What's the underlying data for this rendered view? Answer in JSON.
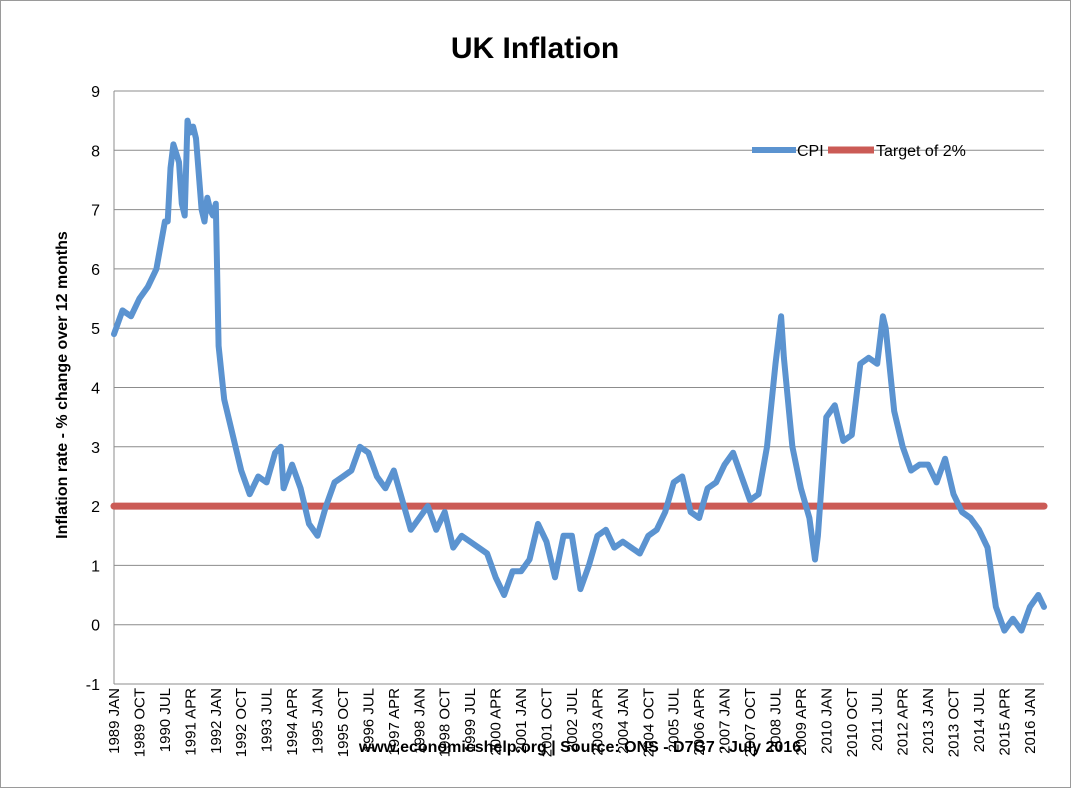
{
  "chart_data": {
    "type": "line",
    "title": "UK Inflation",
    "xlabel": "",
    "ylabel": "Inflation rate  - % change over 12 months",
    "footer": "www.economicshelp.org | Source: ONS - D7G7  - July 2016",
    "ylim": [
      -1,
      9
    ],
    "yticks": [
      "-1",
      "0",
      "1",
      "2",
      "3",
      "4",
      "5",
      "6",
      "7",
      "8",
      "9"
    ],
    "xlim": [
      "1989-01",
      "2016-06"
    ],
    "xtick_labels": [
      "1989 JAN",
      "1989 OCT",
      "1990 JUL",
      "1991 APR",
      "1992 JAN",
      "1992 OCT",
      "1993 JUL",
      "1994 APR",
      "1995 JAN",
      "1995 OCT",
      "1996 JUL",
      "1997 APR",
      "1998 JAN",
      "1998 OCT",
      "1999 JUL",
      "2000 APR",
      "2001 JAN",
      "2001 OCT",
      "2002 JUL",
      "2003 APR",
      "2004 JAN",
      "2004 OCT",
      "2005 JUL",
      "2006 APR",
      "2007 JAN",
      "2007 OCT",
      "2008 JUL",
      "2009 APR",
      "2010 JAN",
      "2010 OCT",
      "2011 JUL",
      "2012 APR",
      "2013 JAN",
      "2013 OCT",
      "2014 JUL",
      "2015 APR",
      "2016 JAN"
    ],
    "grid": "horizontal",
    "legend_position": "top-right",
    "series": [
      {
        "name": "CPI",
        "color": "#5b93d0",
        "points": [
          [
            "1989-01",
            4.9
          ],
          [
            "1989-04",
            5.3
          ],
          [
            "1989-07",
            5.2
          ],
          [
            "1989-10",
            5.5
          ],
          [
            "1990-01",
            5.7
          ],
          [
            "1990-04",
            6.0
          ],
          [
            "1990-07",
            6.8
          ],
          [
            "1990-08",
            6.8
          ],
          [
            "1990-09",
            7.7
          ],
          [
            "1990-10",
            8.1
          ],
          [
            "1990-12",
            7.8
          ],
          [
            "1991-01",
            7.1
          ],
          [
            "1991-02",
            6.9
          ],
          [
            "1991-03",
            8.5
          ],
          [
            "1991-04",
            8.3
          ],
          [
            "1991-05",
            8.4
          ],
          [
            "1991-06",
            8.2
          ],
          [
            "1991-08",
            7.0
          ],
          [
            "1991-09",
            6.8
          ],
          [
            "1991-10",
            7.2
          ],
          [
            "1991-11",
            7.0
          ],
          [
            "1991-12",
            6.9
          ],
          [
            "1992-01",
            7.1
          ],
          [
            "1992-02",
            4.7
          ],
          [
            "1992-04",
            3.8
          ],
          [
            "1992-07",
            3.2
          ],
          [
            "1992-10",
            2.6
          ],
          [
            "1993-01",
            2.2
          ],
          [
            "1993-04",
            2.5
          ],
          [
            "1993-07",
            2.4
          ],
          [
            "1993-10",
            2.9
          ],
          [
            "1993-12",
            3.0
          ],
          [
            "1994-01",
            2.3
          ],
          [
            "1994-04",
            2.7
          ],
          [
            "1994-07",
            2.3
          ],
          [
            "1994-10",
            1.7
          ],
          [
            "1995-01",
            1.5
          ],
          [
            "1995-04",
            2.0
          ],
          [
            "1995-07",
            2.4
          ],
          [
            "1995-10",
            2.5
          ],
          [
            "1996-01",
            2.6
          ],
          [
            "1996-04",
            3.0
          ],
          [
            "1996-07",
            2.9
          ],
          [
            "1996-10",
            2.5
          ],
          [
            "1997-01",
            2.3
          ],
          [
            "1997-04",
            2.6
          ],
          [
            "1997-07",
            2.1
          ],
          [
            "1997-10",
            1.6
          ],
          [
            "1998-01",
            1.8
          ],
          [
            "1998-04",
            2.0
          ],
          [
            "1998-07",
            1.6
          ],
          [
            "1998-10",
            1.9
          ],
          [
            "1999-01",
            1.3
          ],
          [
            "1999-04",
            1.5
          ],
          [
            "1999-07",
            1.4
          ],
          [
            "1999-10",
            1.3
          ],
          [
            "2000-01",
            1.2
          ],
          [
            "2000-04",
            0.8
          ],
          [
            "2000-07",
            0.5
          ],
          [
            "2000-10",
            0.9
          ],
          [
            "2001-01",
            0.9
          ],
          [
            "2001-04",
            1.1
          ],
          [
            "2001-07",
            1.7
          ],
          [
            "2001-10",
            1.4
          ],
          [
            "2002-01",
            0.8
          ],
          [
            "2002-04",
            1.5
          ],
          [
            "2002-07",
            1.5
          ],
          [
            "2002-10",
            0.6
          ],
          [
            "2003-01",
            1.0
          ],
          [
            "2003-04",
            1.5
          ],
          [
            "2003-07",
            1.6
          ],
          [
            "2003-10",
            1.3
          ],
          [
            "2004-01",
            1.4
          ],
          [
            "2004-04",
            1.3
          ],
          [
            "2004-07",
            1.2
          ],
          [
            "2004-10",
            1.5
          ],
          [
            "2005-01",
            1.6
          ],
          [
            "2005-04",
            1.9
          ],
          [
            "2005-07",
            2.4
          ],
          [
            "2005-10",
            2.5
          ],
          [
            "2006-01",
            1.9
          ],
          [
            "2006-04",
            1.8
          ],
          [
            "2006-07",
            2.3
          ],
          [
            "2006-10",
            2.4
          ],
          [
            "2007-01",
            2.7
          ],
          [
            "2007-04",
            2.9
          ],
          [
            "2007-07",
            2.5
          ],
          [
            "2007-10",
            2.1
          ],
          [
            "2008-01",
            2.2
          ],
          [
            "2008-04",
            3.0
          ],
          [
            "2008-07",
            4.4
          ],
          [
            "2008-09",
            5.2
          ],
          [
            "2008-10",
            4.5
          ],
          [
            "2009-01",
            3.0
          ],
          [
            "2009-04",
            2.3
          ],
          [
            "2009-07",
            1.8
          ],
          [
            "2009-09",
            1.1
          ],
          [
            "2009-10",
            1.5
          ],
          [
            "2010-01",
            3.5
          ],
          [
            "2010-04",
            3.7
          ],
          [
            "2010-07",
            3.1
          ],
          [
            "2010-10",
            3.2
          ],
          [
            "2011-01",
            4.4
          ],
          [
            "2011-04",
            4.5
          ],
          [
            "2011-07",
            4.4
          ],
          [
            "2011-09",
            5.2
          ],
          [
            "2011-10",
            5.0
          ],
          [
            "2012-01",
            3.6
          ],
          [
            "2012-04",
            3.0
          ],
          [
            "2012-07",
            2.6
          ],
          [
            "2012-10",
            2.7
          ],
          [
            "2013-01",
            2.7
          ],
          [
            "2013-04",
            2.4
          ],
          [
            "2013-07",
            2.8
          ],
          [
            "2013-10",
            2.2
          ],
          [
            "2014-01",
            1.9
          ],
          [
            "2014-04",
            1.8
          ],
          [
            "2014-07",
            1.6
          ],
          [
            "2014-10",
            1.3
          ],
          [
            "2015-01",
            0.3
          ],
          [
            "2015-04",
            -0.1
          ],
          [
            "2015-07",
            0.1
          ],
          [
            "2015-10",
            -0.1
          ],
          [
            "2016-01",
            0.3
          ],
          [
            "2016-04",
            0.5
          ],
          [
            "2016-06",
            0.3
          ]
        ]
      },
      {
        "name": "Target of 2%",
        "color": "#cb5b56",
        "points": [
          [
            "1989-01",
            2.0
          ],
          [
            "2016-06",
            2.0
          ]
        ]
      }
    ]
  }
}
